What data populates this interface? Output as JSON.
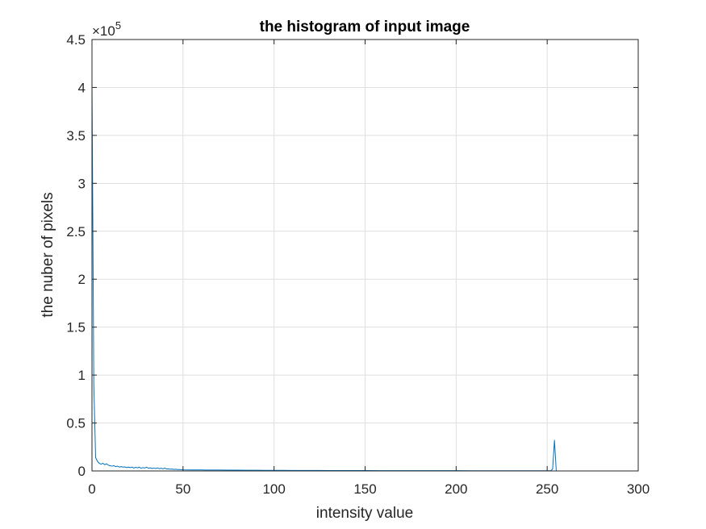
{
  "chart_data": {
    "type": "line",
    "title": "the histogram of input image",
    "xlabel": "intensity value",
    "ylabel": "the nuber of pixels",
    "xlim": [
      0,
      300
    ],
    "ylim": [
      0,
      450000
    ],
    "grid": true,
    "y_exponent_label": {
      "base": "×10",
      "power": "5"
    },
    "x_ticks": [
      0,
      50,
      100,
      150,
      200,
      250,
      300
    ],
    "x_tick_labels": [
      "0",
      "50",
      "100",
      "150",
      "200",
      "250",
      "300"
    ],
    "y_ticks": [
      0,
      50000,
      100000,
      150000,
      200000,
      250000,
      300000,
      350000,
      400000,
      450000
    ],
    "y_tick_labels": [
      "0",
      "0.5",
      "1",
      "1.5",
      "2",
      "2.5",
      "3",
      "3.5",
      "4",
      "4.5"
    ],
    "line_color": "#0072bd",
    "series": [
      {
        "x": [
          0,
          1,
          2,
          3,
          4,
          5,
          6,
          7,
          8,
          9,
          10,
          11,
          12,
          13,
          14,
          15,
          16,
          17,
          18,
          19,
          20,
          21,
          22,
          23,
          24,
          25,
          26,
          27,
          28,
          29,
          30,
          31,
          32,
          33,
          34,
          35,
          36,
          37,
          38,
          39,
          40,
          41,
          42,
          43,
          44,
          45,
          46,
          47,
          48,
          49,
          50,
          55,
          60,
          65,
          70,
          75,
          80,
          85,
          90,
          95,
          100,
          105,
          110,
          115,
          120,
          125,
          130,
          135,
          140,
          145,
          150,
          160,
          170,
          180,
          190,
          200,
          210,
          220,
          230,
          240,
          250,
          252,
          253,
          254,
          255
        ],
        "y": [
          406000,
          90000,
          14000,
          10000,
          8000,
          7000,
          8000,
          6500,
          7500,
          6000,
          5500,
          5000,
          5500,
          4500,
          5000,
          4000,
          4500,
          4000,
          4200,
          3500,
          4000,
          3500,
          4000,
          3000,
          3800,
          3200,
          4000,
          2800,
          3500,
          3000,
          4000,
          2800,
          3200,
          2600,
          3000,
          2500,
          3200,
          2400,
          2800,
          2200,
          3000,
          2000,
          2200,
          1800,
          2000,
          1600,
          1800,
          1500,
          1500,
          1400,
          1200,
          1100,
          1000,
          900,
          900,
          800,
          800,
          700,
          700,
          600,
          600,
          600,
          550,
          550,
          500,
          500,
          450,
          450,
          400,
          400,
          400,
          350,
          350,
          300,
          300,
          300,
          250,
          250,
          250,
          200,
          200,
          300,
          2000,
          32000,
          0
        ]
      }
    ]
  }
}
